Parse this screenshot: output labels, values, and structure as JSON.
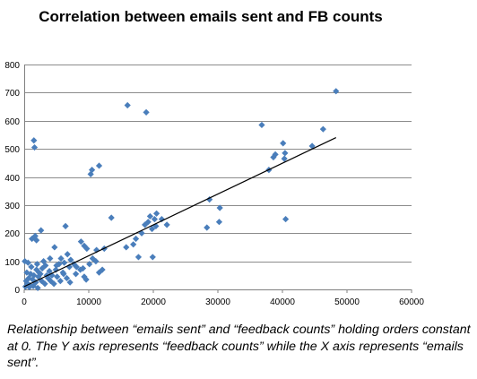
{
  "caption": "Relationship between “emails sent” and “feedback counts” holding orders constant at 0. The Y axis represents “feedback counts” while the X axis represents “emails sent”.",
  "colors": {
    "marker": "#4a7ebb",
    "gridline": "#8c8c8c",
    "trendline": "#000000"
  },
  "chart_data": {
    "type": "scatter",
    "title": "Correlation between emails sent and FB counts",
    "xlabel": "",
    "ylabel": "",
    "xlim": [
      0,
      60000
    ],
    "ylim": [
      0,
      800
    ],
    "x_ticks": [
      0,
      10000,
      20000,
      30000,
      40000,
      50000,
      60000
    ],
    "y_ticks": [
      0,
      100,
      200,
      300,
      400,
      500,
      600,
      700,
      800
    ],
    "grid": {
      "horizontal": true,
      "vertical": false
    },
    "marker": "diamond",
    "trendline": {
      "type": "linear",
      "from": [
        0,
        10
      ],
      "to": [
        48300,
        540
      ]
    },
    "points": [
      [
        1500,
        530
      ],
      [
        1600,
        505
      ],
      [
        1200,
        180
      ],
      [
        1700,
        190
      ],
      [
        1900,
        175
      ],
      [
        2600,
        210
      ],
      [
        6400,
        225
      ],
      [
        4700,
        150
      ],
      [
        600,
        95
      ],
      [
        1100,
        80
      ],
      [
        1900,
        70
      ],
      [
        2300,
        60
      ],
      [
        2800,
        75
      ],
      [
        3300,
        85
      ],
      [
        3900,
        65
      ],
      [
        4300,
        50
      ],
      [
        4900,
        70
      ],
      [
        5400,
        90
      ],
      [
        5700,
        110
      ],
      [
        6200,
        95
      ],
      [
        6700,
        125
      ],
      [
        7200,
        105
      ],
      [
        7700,
        90
      ],
      [
        8100,
        80
      ],
      [
        8700,
        70
      ],
      [
        9100,
        75
      ],
      [
        9300,
        45
      ],
      [
        9600,
        35
      ],
      [
        10100,
        90
      ],
      [
        10600,
        110
      ],
      [
        11100,
        100
      ],
      [
        11600,
        60
      ],
      [
        12100,
        70
      ],
      [
        8800,
        170
      ],
      [
        9300,
        155
      ],
      [
        9700,
        145
      ],
      [
        11200,
        140
      ],
      [
        11600,
        440
      ],
      [
        10300,
        410
      ],
      [
        10500,
        425
      ],
      [
        13500,
        255
      ],
      [
        12400,
        145
      ],
      [
        300,
        30
      ],
      [
        500,
        20
      ],
      [
        700,
        40
      ],
      [
        900,
        15
      ],
      [
        1300,
        35
      ],
      [
        1800,
        25
      ],
      [
        2200,
        45
      ],
      [
        2700,
        30
      ],
      [
        3200,
        20
      ],
      [
        3700,
        40
      ],
      [
        4100,
        30
      ],
      [
        4600,
        20
      ],
      [
        5100,
        45
      ],
      [
        5600,
        30
      ],
      [
        6100,
        55
      ],
      [
        6600,
        40
      ],
      [
        7100,
        25
      ],
      [
        1500,
        50
      ],
      [
        2500,
        55
      ],
      [
        3500,
        50
      ],
      [
        400,
        60
      ],
      [
        1000,
        55
      ],
      [
        2000,
        90
      ],
      [
        3000,
        100
      ],
      [
        4000,
        110
      ],
      [
        5000,
        85
      ],
      [
        6000,
        60
      ],
      [
        7000,
        80
      ],
      [
        8000,
        55
      ],
      [
        200,
        10
      ],
      [
        800,
        8
      ],
      [
        1400,
        12
      ],
      [
        2100,
        5
      ],
      [
        100,
        100
      ],
      [
        16000,
        655
      ],
      [
        18900,
        630
      ],
      [
        15800,
        150
      ],
      [
        16900,
        160
      ],
      [
        17300,
        180
      ],
      [
        18200,
        200
      ],
      [
        18700,
        230
      ],
      [
        19200,
        240
      ],
      [
        19500,
        260
      ],
      [
        19800,
        215
      ],
      [
        20200,
        250
      ],
      [
        20500,
        270
      ],
      [
        21300,
        250
      ],
      [
        20400,
        225
      ],
      [
        22100,
        230
      ],
      [
        17700,
        115
      ],
      [
        19900,
        115
      ],
      [
        28300,
        220
      ],
      [
        28700,
        320
      ],
      [
        30200,
        240
      ],
      [
        30300,
        290
      ],
      [
        36800,
        585
      ],
      [
        37900,
        425
      ],
      [
        38600,
        470
      ],
      [
        38900,
        480
      ],
      [
        40100,
        520
      ],
      [
        40300,
        465
      ],
      [
        40400,
        485
      ],
      [
        40500,
        250
      ],
      [
        44600,
        510
      ],
      [
        46300,
        570
      ],
      [
        48300,
        705
      ]
    ]
  }
}
